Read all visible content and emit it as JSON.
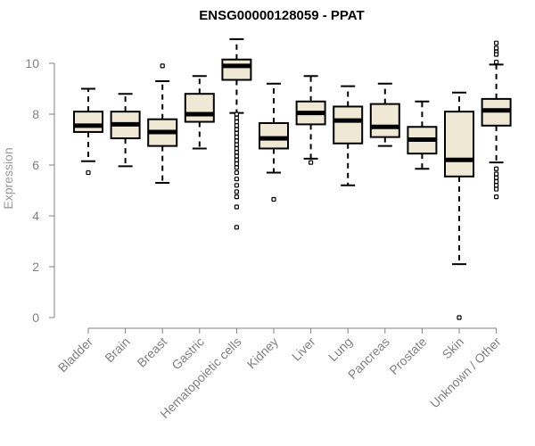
{
  "chart_data": {
    "type": "box",
    "title": "ENSG00000128059 - PPAT",
    "xlabel": "",
    "ylabel": "Expression",
    "ylim": [
      0,
      11
    ],
    "yticks": [
      0,
      2,
      4,
      6,
      8,
      10
    ],
    "grid": false,
    "colors": {
      "box_fill": "#EEE8D4",
      "stroke": "#000000",
      "axis": "#808080",
      "label": "#808080"
    },
    "categories": [
      "Bladder",
      "Brain",
      "Breast",
      "Gastric",
      "Hematopoietic cells",
      "Kidney",
      "Liver",
      "Lung",
      "Pancreas",
      "Prostate",
      "Skin",
      "Unknown / Other"
    ],
    "boxes": [
      {
        "category": "Bladder",
        "whisker_low": 6.15,
        "q1": 7.3,
        "median": 7.55,
        "q3": 8.1,
        "whisker_high": 9.0,
        "outliers": [
          5.7
        ]
      },
      {
        "category": "Brain",
        "whisker_low": 5.95,
        "q1": 7.05,
        "median": 7.6,
        "q3": 8.1,
        "whisker_high": 8.8,
        "outliers": []
      },
      {
        "category": "Breast",
        "whisker_low": 5.3,
        "q1": 6.75,
        "median": 7.3,
        "q3": 7.8,
        "whisker_high": 9.3,
        "outliers": [
          9.9
        ]
      },
      {
        "category": "Gastric",
        "whisker_low": 6.65,
        "q1": 7.7,
        "median": 8.0,
        "q3": 8.8,
        "whisker_high": 9.5,
        "outliers": []
      },
      {
        "category": "Hematopoietic cells",
        "whisker_low": 8.05,
        "q1": 9.35,
        "median": 9.9,
        "q3": 10.15,
        "whisker_high": 10.95,
        "outliers": [
          8.0,
          7.85,
          7.7,
          7.55,
          7.4,
          7.25,
          7.1,
          6.95,
          6.8,
          6.65,
          6.5,
          6.35,
          6.2,
          6.05,
          5.9,
          5.7,
          5.45,
          5.2,
          4.95,
          4.75,
          4.35,
          3.55
        ]
      },
      {
        "category": "Kidney",
        "whisker_low": 5.7,
        "q1": 6.65,
        "median": 7.05,
        "q3": 7.65,
        "whisker_high": 9.2,
        "outliers": [
          4.65
        ]
      },
      {
        "category": "Liver",
        "whisker_low": 6.25,
        "q1": 7.6,
        "median": 8.05,
        "q3": 8.5,
        "whisker_high": 9.5,
        "outliers": [
          6.1
        ]
      },
      {
        "category": "Lung",
        "whisker_low": 5.2,
        "q1": 6.85,
        "median": 7.75,
        "q3": 8.3,
        "whisker_high": 9.1,
        "outliers": []
      },
      {
        "category": "Pancreas",
        "whisker_low": 6.75,
        "q1": 7.1,
        "median": 7.5,
        "q3": 8.4,
        "whisker_high": 9.2,
        "outliers": []
      },
      {
        "category": "Prostate",
        "whisker_low": 5.85,
        "q1": 6.45,
        "median": 7.0,
        "q3": 7.5,
        "whisker_high": 8.5,
        "outliers": []
      },
      {
        "category": "Skin",
        "whisker_low": 2.1,
        "q1": 5.55,
        "median": 6.2,
        "q3": 8.1,
        "whisker_high": 8.85,
        "outliers": [
          0.0
        ]
      },
      {
        "category": "Unknown / Other",
        "whisker_low": 6.1,
        "q1": 7.55,
        "median": 8.15,
        "q3": 8.6,
        "whisker_high": 9.95,
        "outliers": [
          10.8,
          10.6,
          10.45,
          10.35,
          10.05,
          5.85,
          5.65,
          5.5,
          5.35,
          5.2,
          5.05,
          4.75
        ]
      }
    ]
  }
}
